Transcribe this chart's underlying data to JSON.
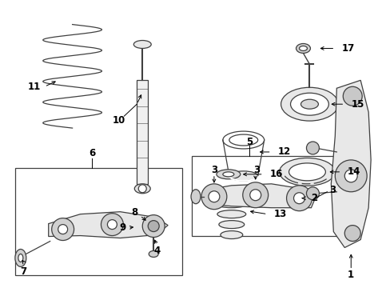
{
  "background_color": "#ffffff",
  "line_color": "#404040",
  "fig_width": 4.89,
  "fig_height": 3.6,
  "dpi": 100
}
